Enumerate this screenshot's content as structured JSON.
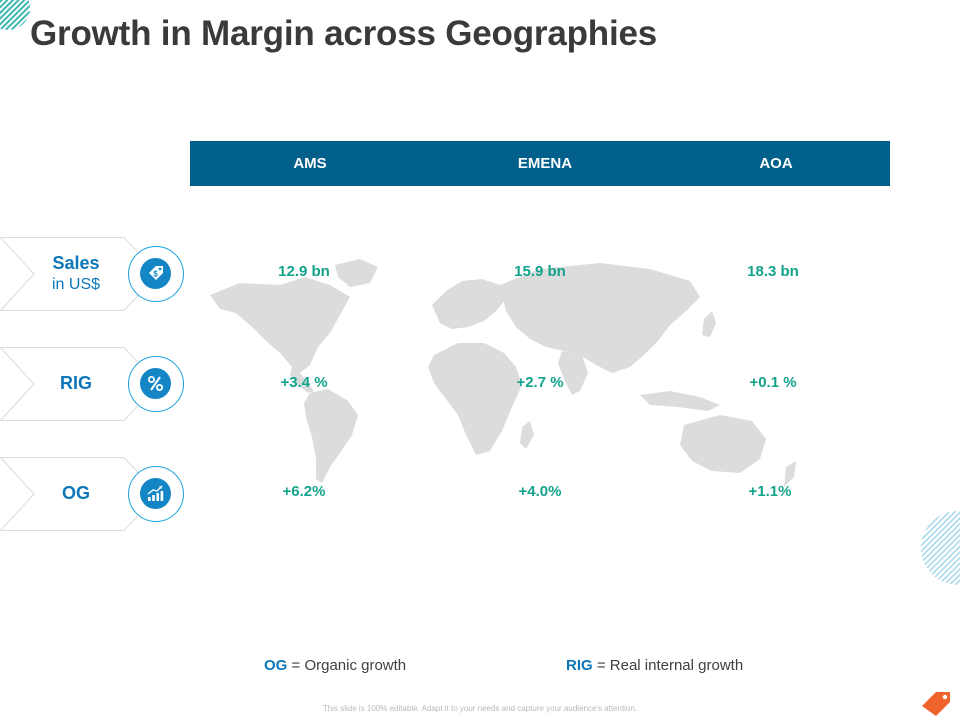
{
  "title": "Growth in Margin across Geographies",
  "columns": [
    "AMS",
    "EMENA",
    "AOA"
  ],
  "rows": [
    {
      "label": "Sales",
      "sublabel": "in US$",
      "icon": "money-tag-icon",
      "values": [
        "12.9 bn",
        "15.9 bn",
        "18.3 bn"
      ]
    },
    {
      "label": "RIG",
      "sublabel": "",
      "icon": "percent-icon",
      "values": [
        "+3.4 %",
        "+2.7 %",
        "+0.1 %"
      ]
    },
    {
      "label": "OG",
      "sublabel": "",
      "icon": "growth-chart-icon",
      "values": [
        "+6.2%",
        "+4.0%",
        "+1.1%"
      ]
    }
  ],
  "legend": [
    {
      "key": "OG",
      "text": "= Organic growth"
    },
    {
      "key": "RIG",
      "text": "= Real internal growth"
    }
  ],
  "footer": "This slide is 100% editable. Adapt it to your needs and capture your audience's attention.",
  "colors": {
    "header_bg": "#00608b",
    "label_blue": "#0d77b9",
    "value_green": "#13a38c",
    "icon_blue": "#1486c6",
    "map_gray": "#dcdcdc",
    "accent_orange": "#f0632a"
  }
}
